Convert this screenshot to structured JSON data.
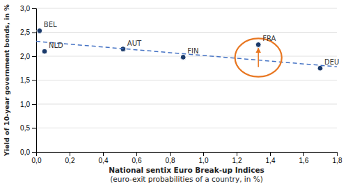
{
  "chart_data": {
    "type": "scatter",
    "y_label": "Yield of 10-year government bonds, in %",
    "x_label": [
      "National sentix Euro Break-up Indices",
      "(euro-exit probabilities of a country, in %)"
    ],
    "series": [
      {
        "type": "scatter",
        "color": "#1a3a6b",
        "marker": "circle",
        "x": [
          0.02,
          0.05,
          0.52,
          0.88,
          1.33,
          1.7
        ],
        "values": [
          2.53,
          2.1,
          2.15,
          1.98,
          2.24,
          1.75
        ],
        "labels": [
          "BEL",
          "NLD",
          "AUT",
          "FIN",
          "FRA",
          "DEU"
        ]
      },
      {
        "type": "line",
        "color": "#4472C4",
        "line_style": "dashed",
        "x": [
          0.0,
          1.8
        ],
        "values": [
          2.31,
          1.78
        ]
      }
    ],
    "annotations": [
      {
        "type": "ellipse",
        "x": 1.33,
        "y": 1.97,
        "width": 0.28,
        "height": 0.8,
        "color": "#E87722"
      },
      {
        "type": "arrow",
        "x": 1.33,
        "y_start": 1.77,
        "y_end": 2.17,
        "color": "#E87722"
      }
    ],
    "xlim": [
      0.0,
      1.8
    ],
    "ylim": [
      0.0,
      3.0
    ],
    "xticks": [
      {
        "value": 0.0,
        "label": "0,0"
      },
      {
        "value": 0.2,
        "label": "0,2"
      },
      {
        "value": 0.4,
        "label": "0,4"
      },
      {
        "value": 0.6,
        "label": "0,6"
      },
      {
        "value": 0.8,
        "label": "0,8"
      },
      {
        "value": 1.0,
        "label": "1,0"
      },
      {
        "value": 1.2,
        "label": "1,2"
      },
      {
        "value": 1.4,
        "label": "1,4"
      },
      {
        "value": 1.6,
        "label": "1,6"
      },
      {
        "value": 1.8,
        "label": "1,8"
      }
    ],
    "yticks": [
      {
        "value": 0.0,
        "label": "0,0"
      },
      {
        "value": 0.5,
        "label": "0,5"
      },
      {
        "value": 1.0,
        "label": "1,0"
      },
      {
        "value": 1.5,
        "label": "1,5"
      },
      {
        "value": 2.0,
        "label": "2,0"
      },
      {
        "value": 2.5,
        "label": "2,5"
      },
      {
        "value": 3.0,
        "label": "3,0"
      }
    ],
    "grid": true
  }
}
